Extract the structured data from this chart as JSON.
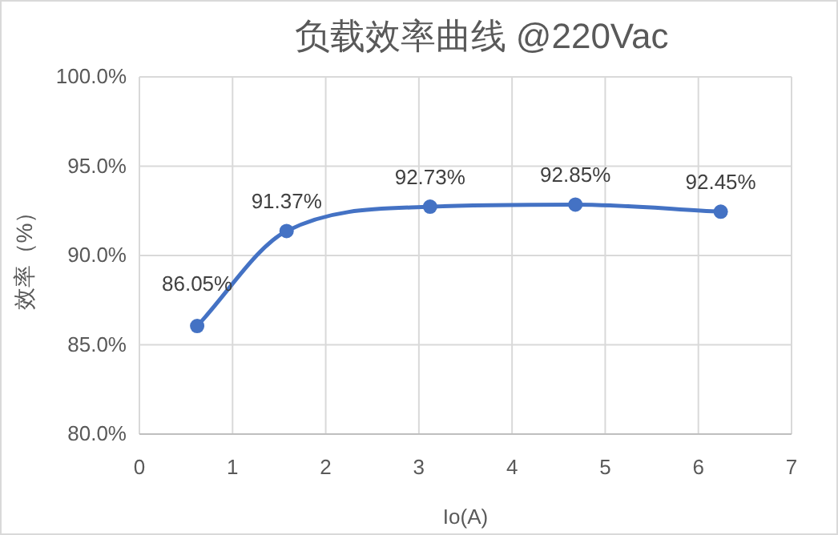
{
  "chart_data": {
    "type": "line",
    "title": "负载效率曲线 @220Vac",
    "xlabel": "Io(A)",
    "ylabel": "效率（%）",
    "x": [
      0.62,
      1.58,
      3.12,
      4.68,
      6.24
    ],
    "series": [
      {
        "color": "#4472c4",
        "values": [
          86.05,
          91.37,
          92.73,
          92.85,
          92.45
        ],
        "value_labels": [
          "86.05%",
          "91.37%",
          "92.73%",
          "92.85%",
          "92.45%"
        ]
      }
    ],
    "xlim": [
      0,
      7
    ],
    "xticks": [
      0,
      1,
      2,
      3,
      4,
      5,
      6,
      7
    ],
    "ylim": [
      80,
      100
    ],
    "yticks": [
      {
        "value": 80,
        "label": "80.0%"
      },
      {
        "value": 85,
        "label": "85.0%"
      },
      {
        "value": 90,
        "label": "90.0%"
      },
      {
        "value": 95,
        "label": "95.0%"
      },
      {
        "value": 100,
        "label": "100.0%"
      }
    ],
    "grid": true,
    "marker": "circle",
    "line_style": "solid"
  }
}
